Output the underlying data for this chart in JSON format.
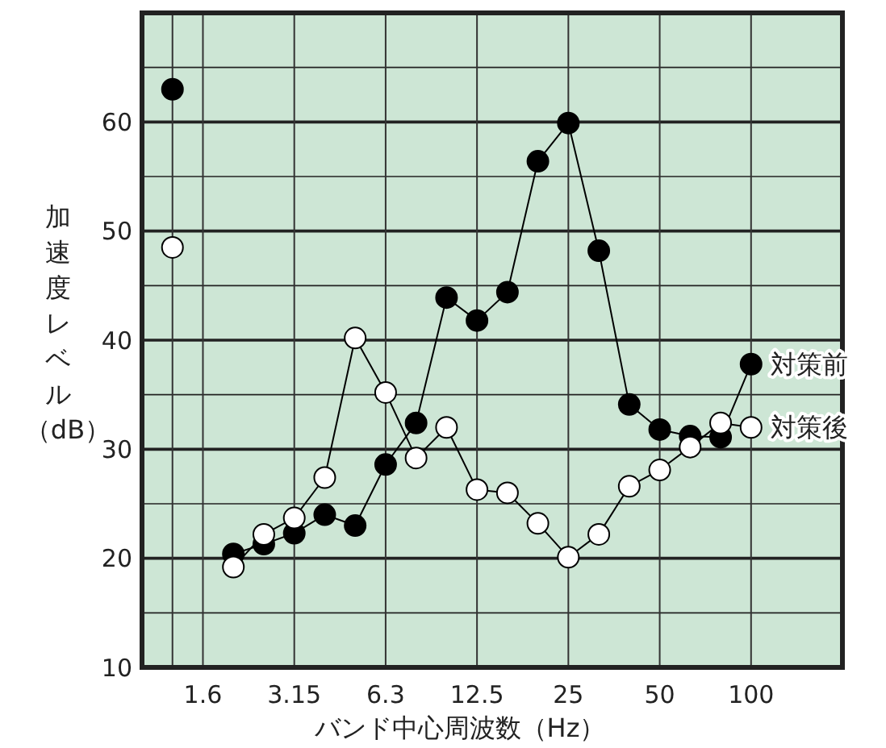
{
  "chart_data": {
    "type": "line",
    "xlabel": "バンド中心周波数（Hz）",
    "ylabel": "加速度レベル（dB）",
    "categories": [
      null,
      "1.6",
      null,
      null,
      "3.15",
      null,
      null,
      "6.3",
      null,
      null,
      "12.5",
      null,
      null,
      "25",
      null,
      null,
      "50",
      null,
      null,
      "100"
    ],
    "series": [
      {
        "name": "対策前",
        "color": "#000000",
        "values": [
          63,
          null,
          20.4,
          21.3,
          22.3,
          24.0,
          23.0,
          28.6,
          32.4,
          43.9,
          41.8,
          44.4,
          56.4,
          59.9,
          48.2,
          34.1,
          31.8,
          31.2,
          31.1,
          37.8
        ]
      },
      {
        "name": "対策後",
        "color": "#ffffff",
        "values": [
          48.5,
          null,
          19.2,
          22.2,
          23.7,
          27.4,
          40.2,
          35.2,
          29.2,
          32.0,
          26.3,
          26.0,
          23.2,
          20.1,
          22.2,
          26.6,
          28.1,
          30.2,
          32.4,
          32.0
        ]
      }
    ],
    "ylim": [
      10,
      70
    ],
    "yticks": [
      10,
      {
        "value": 15,
        "label": null
      },
      20,
      {
        "value": 25,
        "label": null
      },
      30,
      {
        "value": 35,
        "label": null
      },
      40,
      {
        "value": 45,
        "label": null
      },
      50,
      {
        "value": 55,
        "label": null
      },
      60,
      {
        "value": 65,
        "label": null
      }
    ],
    "grid": true,
    "legend": false,
    "marker": "circle",
    "line_style": "solid"
  }
}
